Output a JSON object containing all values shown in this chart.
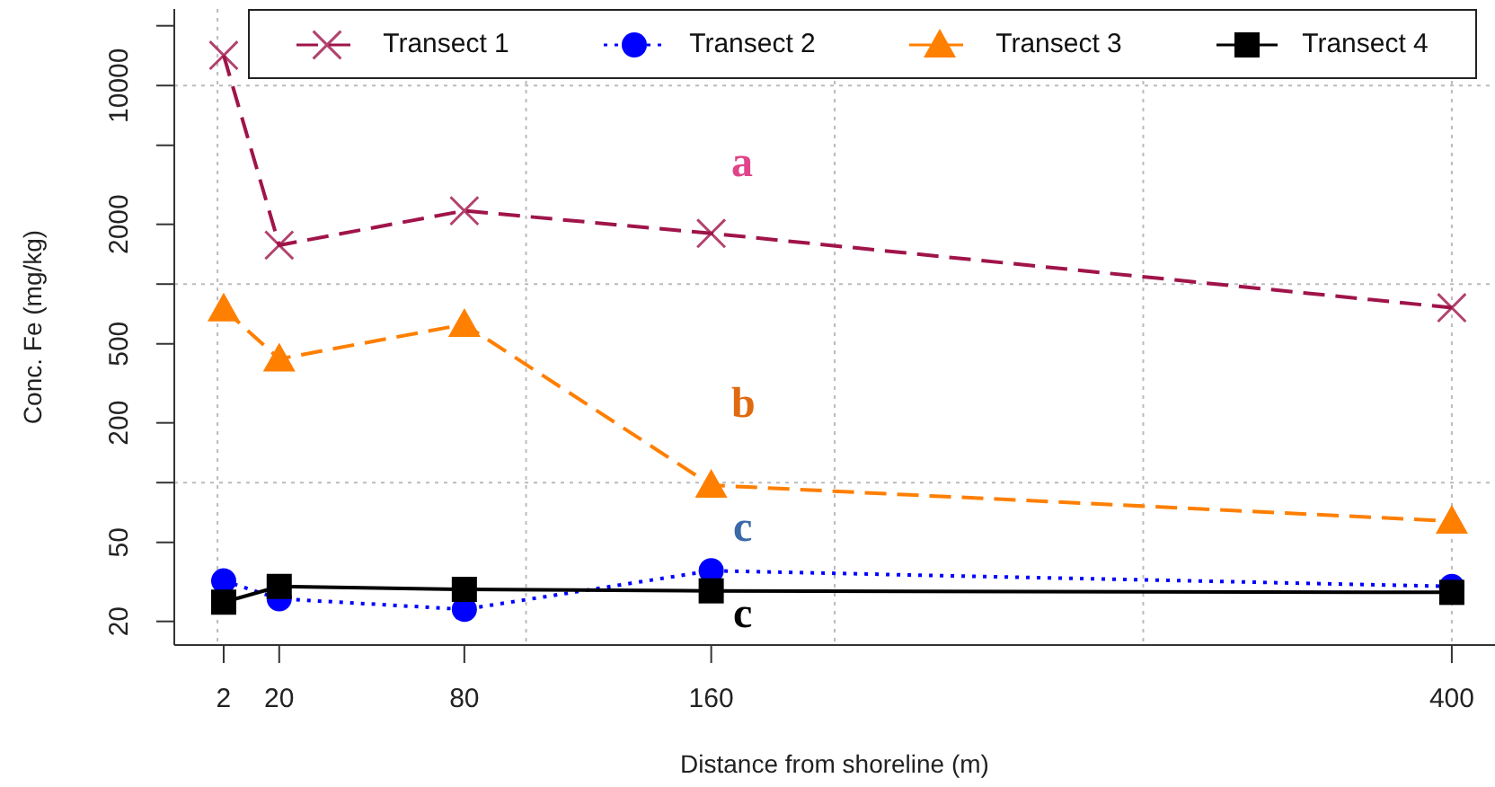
{
  "chart_data": {
    "type": "line",
    "xlabel": "Distance from shoreline (m)",
    "ylabel": "Conc. Fe (mg/kg)",
    "x": [
      2,
      20,
      80,
      160,
      400
    ],
    "series": [
      {
        "name": "Transect 1",
        "color": "#a0144a",
        "values": [
          14200,
          1570,
          2340,
          1800,
          760
        ],
        "marker": "cross",
        "line_style": "dashed"
      },
      {
        "name": "Transect 2",
        "color": "#0000ff",
        "values": [
          32,
          26,
          23,
          36,
          30
        ],
        "marker": "circle",
        "line_style": "dotted"
      },
      {
        "name": "Transect 3",
        "color": "#ff7f00",
        "values": [
          750,
          420,
          627,
          97,
          64
        ],
        "marker": "triangle",
        "line_style": "dashed"
      },
      {
        "name": "Transect 4",
        "color": "#000000",
        "values": [
          25,
          30,
          29,
          28.5,
          28
        ],
        "marker": "square",
        "line_style": "solid"
      }
    ],
    "xlim": [
      -14,
      414
    ],
    "xticks": [
      2,
      20,
      80,
      160,
      400
    ],
    "ylim": [
      15.2,
      24300
    ],
    "yticks": [
      20,
      50,
      {
        "value": 100,
        "label": null
      },
      200,
      500,
      {
        "value": 1000,
        "label": null
      },
      2000,
      {
        "value": 5000,
        "label": null
      },
      10000,
      {
        "value": 20000,
        "label": null
      }
    ],
    "log": "y",
    "grid": true,
    "legend": "top",
    "annotations": [
      "a",
      "b",
      "c",
      "c"
    ]
  }
}
